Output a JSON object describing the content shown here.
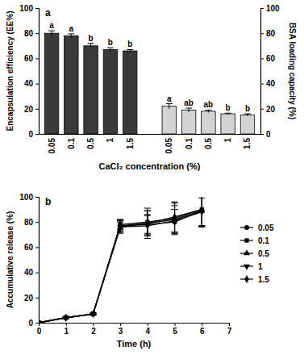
{
  "chart_data": [
    {
      "type": "bar",
      "title": "a",
      "categories": [
        "0.05",
        "0.1",
        "0.5",
        "1",
        "1.5",
        null,
        "0.05",
        "0.1",
        "0.5",
        "1",
        "1.5"
      ],
      "xlabel": "CaCl₂ concentration (%)",
      "ylabel": "Encapsulation efficiency (EE%)",
      "y2label": "BSA loading capacity (%)",
      "ylim": [
        0,
        100
      ],
      "yticks": [
        0,
        20,
        40,
        60,
        80,
        100
      ],
      "y2lim": [
        0,
        100
      ],
      "y2ticks": [
        0,
        20,
        40,
        60,
        80,
        100
      ],
      "series": [
        {
          "color": "#3a3a3a",
          "axis": "y",
          "values": [
            80,
            78,
            70,
            67,
            66,
            null,
            null,
            null,
            null,
            null,
            null
          ],
          "errors": [
            2,
            1.5,
            2,
            1.5,
            1,
            null,
            null,
            null,
            null,
            null,
            null
          ],
          "letters": [
            "a",
            "a",
            "b",
            "b",
            "b",
            null,
            null,
            null,
            null,
            null,
            null
          ]
        },
        {
          "color": "#d3d3d3",
          "axis": "y2",
          "values": [
            null,
            null,
            null,
            null,
            null,
            null,
            22,
            19,
            18,
            16,
            15
          ],
          "errors": [
            null,
            null,
            null,
            null,
            null,
            null,
            2,
            1.5,
            1,
            0.5,
            1
          ],
          "letters": [
            null,
            null,
            null,
            null,
            null,
            null,
            "a",
            "ab",
            "ab",
            "b",
            "b"
          ]
        }
      ]
    },
    {
      "type": "line",
      "title": "b",
      "x": [
        0,
        1,
        2,
        3,
        4,
        5,
        6
      ],
      "xlim": [
        0,
        7
      ],
      "xticks": [
        0,
        1,
        2,
        3,
        4,
        5,
        6,
        7
      ],
      "ylim": [
        0,
        100
      ],
      "yticks": [
        0,
        20,
        40,
        60,
        80,
        100
      ],
      "xlabel": "Time (h)",
      "ylabel": "Accumulative release (%)",
      "legend": "right",
      "series": [
        {
          "name": "0.05",
          "color": "#000000",
          "marker": "circle",
          "values": [
            0,
            4,
            7,
            77,
            78,
            80,
            89
          ],
          "errors": [
            0,
            0.5,
            0.5,
            4,
            8,
            10,
            12
          ]
        },
        {
          "name": "0.1",
          "color": "#000000",
          "marker": "square",
          "values": [
            0,
            4,
            7,
            78,
            80,
            83,
            90
          ],
          "errors": [
            0,
            0.5,
            0.5,
            4,
            9,
            12,
            13
          ]
        },
        {
          "name": "0.5",
          "color": "#000000",
          "marker": "triangle",
          "values": [
            0,
            4,
            7,
            76,
            79,
            82,
            89
          ],
          "errors": [
            0,
            0.5,
            0.5,
            5,
            10,
            11,
            12
          ]
        },
        {
          "name": "1",
          "color": "#000000",
          "marker": "triangle-down",
          "values": [
            0,
            4,
            7,
            76,
            77,
            81,
            88
          ],
          "errors": [
            0,
            0.5,
            0.5,
            4,
            8,
            9,
            11
          ]
        },
        {
          "name": "1.5",
          "color": "#000000",
          "marker": "diamond",
          "values": [
            0,
            4,
            7,
            77,
            79,
            84,
            90
          ],
          "errors": [
            0,
            0.5,
            0.5,
            5,
            12,
            12,
            14
          ]
        }
      ]
    }
  ]
}
